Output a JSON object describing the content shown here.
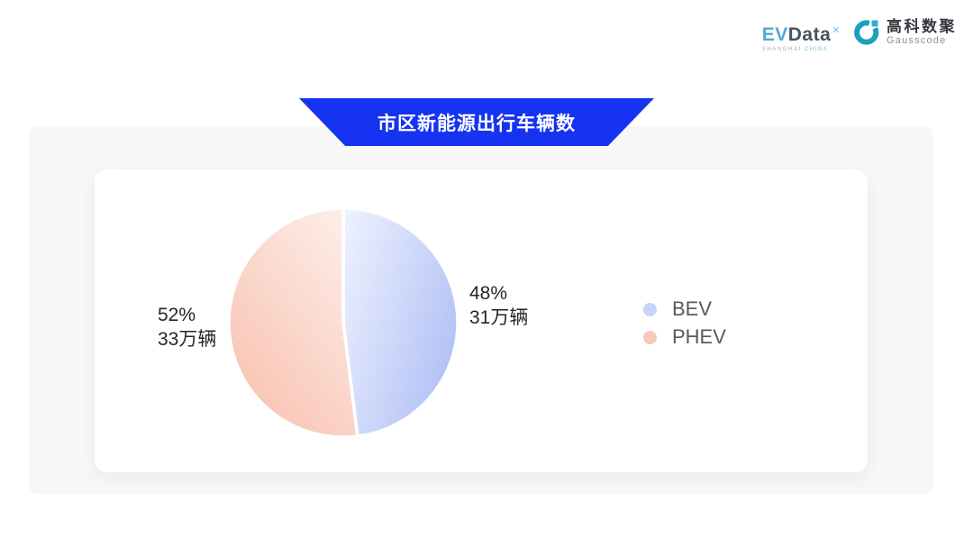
{
  "brand": {
    "evdata": {
      "text_primary": "EV",
      "text_secondary": "Data",
      "superscript": "✕",
      "tagline_left": "SHANGHAI",
      "tagline_right": "CHINA"
    },
    "gausscode": {
      "name_cn": "高科数聚",
      "name_en": "Gausscode"
    }
  },
  "banner": {
    "title": "市区新能源出行车辆数"
  },
  "chart_data": {
    "type": "pie",
    "title": "市区新能源出行车辆数",
    "unit": "万辆",
    "start_angle_deg": 90,
    "clockwise": true,
    "labels_outside": true,
    "legend_position": "right",
    "series": [
      {
        "name": "BEV",
        "percent": 48,
        "value": 31,
        "percent_label": "48%",
        "value_label": "31万辆",
        "gradient": [
          "#EFF3FE",
          "#B3C2F6"
        ],
        "gradient_dir": [
          "0%",
          "0%",
          "100%",
          "60%"
        ],
        "legend_color": "#C7D3F8"
      },
      {
        "name": "PHEV",
        "percent": 52,
        "value": 33,
        "percent_label": "52%",
        "value_label": "33万辆",
        "gradient": [
          "#FDF0EB",
          "#F9C1B0"
        ],
        "gradient_dir": [
          "95%",
          "0%",
          "20%",
          "100%"
        ],
        "legend_color": "#F8C9B9"
      }
    ]
  },
  "colors": {
    "banner_blue": "#1533F0",
    "panel_bg": "#F7F7F8",
    "card_bg": "#FFFFFF",
    "label_text": "#262626",
    "legend_text": "#58595B",
    "evdata_blue": "#4FABD9",
    "evdata_dark": "#47545E",
    "gauss_teal": "#1E9FBC",
    "slice_border": "#FFFFFF"
  }
}
